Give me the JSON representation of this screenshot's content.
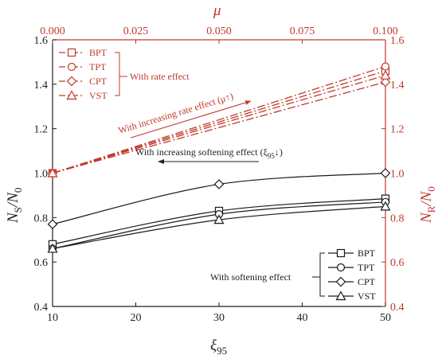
{
  "chart_data": {
    "type": "line",
    "x_bottom": {
      "label": "ξ",
      "label_sub": "95",
      "ticks": [
        "10",
        "20",
        "30",
        "40",
        "50"
      ],
      "range": [
        10,
        50
      ]
    },
    "x_top": {
      "label": "μ",
      "ticks": [
        "0.000",
        "0.025",
        "0.050",
        "0.075",
        "0.100"
      ],
      "range": [
        0,
        0.1
      ]
    },
    "y_left": {
      "label": "N",
      "label_sub": "S",
      "label_tail": "/N",
      "label_tail_sub": "0",
      "ticks": [
        "0.4",
        "0.6",
        "0.8",
        "1.0",
        "1.2",
        "1.4",
        "1.6"
      ],
      "range": [
        0.4,
        1.6
      ]
    },
    "y_right": {
      "label": "N",
      "label_sub": "R",
      "label_tail": "/N",
      "label_tail_sub": "0",
      "ticks": [
        "0.4",
        "0.6",
        "0.8",
        "1.0",
        "1.2",
        "1.4",
        "1.6"
      ],
      "range": [
        0.4,
        1.6
      ]
    },
    "softening_series": [
      {
        "name": "BPT",
        "marker": "square",
        "x": [
          10,
          30,
          50
        ],
        "y": [
          0.68,
          0.83,
          0.885
        ]
      },
      {
        "name": "TPT",
        "marker": "circle",
        "x": [
          10,
          30,
          50
        ],
        "y": [
          0.66,
          0.815,
          0.87
        ]
      },
      {
        "name": "CPT",
        "marker": "diamond",
        "x": [
          10,
          30,
          50
        ],
        "y": [
          0.77,
          0.95,
          1.0
        ]
      },
      {
        "name": "VST",
        "marker": "triangle",
        "x": [
          10,
          30,
          50
        ],
        "y": [
          0.66,
          0.79,
          0.85
        ]
      }
    ],
    "rate_series": [
      {
        "name": "BPT",
        "marker": "square",
        "mu": [
          0,
          0.1
        ],
        "y": [
          1.0,
          1.46
        ]
      },
      {
        "name": "TPT",
        "marker": "circle",
        "mu": [
          0,
          0.1
        ],
        "y": [
          1.0,
          1.48
        ]
      },
      {
        "name": "CPT",
        "marker": "diamond",
        "mu": [
          0,
          0.1
        ],
        "y": [
          1.0,
          1.41
        ]
      },
      {
        "name": "VST",
        "marker": "triangle",
        "mu": [
          0,
          0.1
        ],
        "y": [
          1.0,
          1.44
        ]
      }
    ],
    "colors": {
      "softening": "#1a1a1a",
      "rate": "#c0392b"
    },
    "legend_top_left": {
      "group_label": "With rate effect",
      "placement": "top-left"
    },
    "legend_bottom_right": {
      "group_label": "With softening effect",
      "placement": "bottom-right"
    },
    "annotations": {
      "rate": "With increasing rate effect (μ↑)",
      "softening": "With increasing softening effect (ξ",
      "softening_sub": "95",
      "softening_tail": "↓)"
    }
  }
}
